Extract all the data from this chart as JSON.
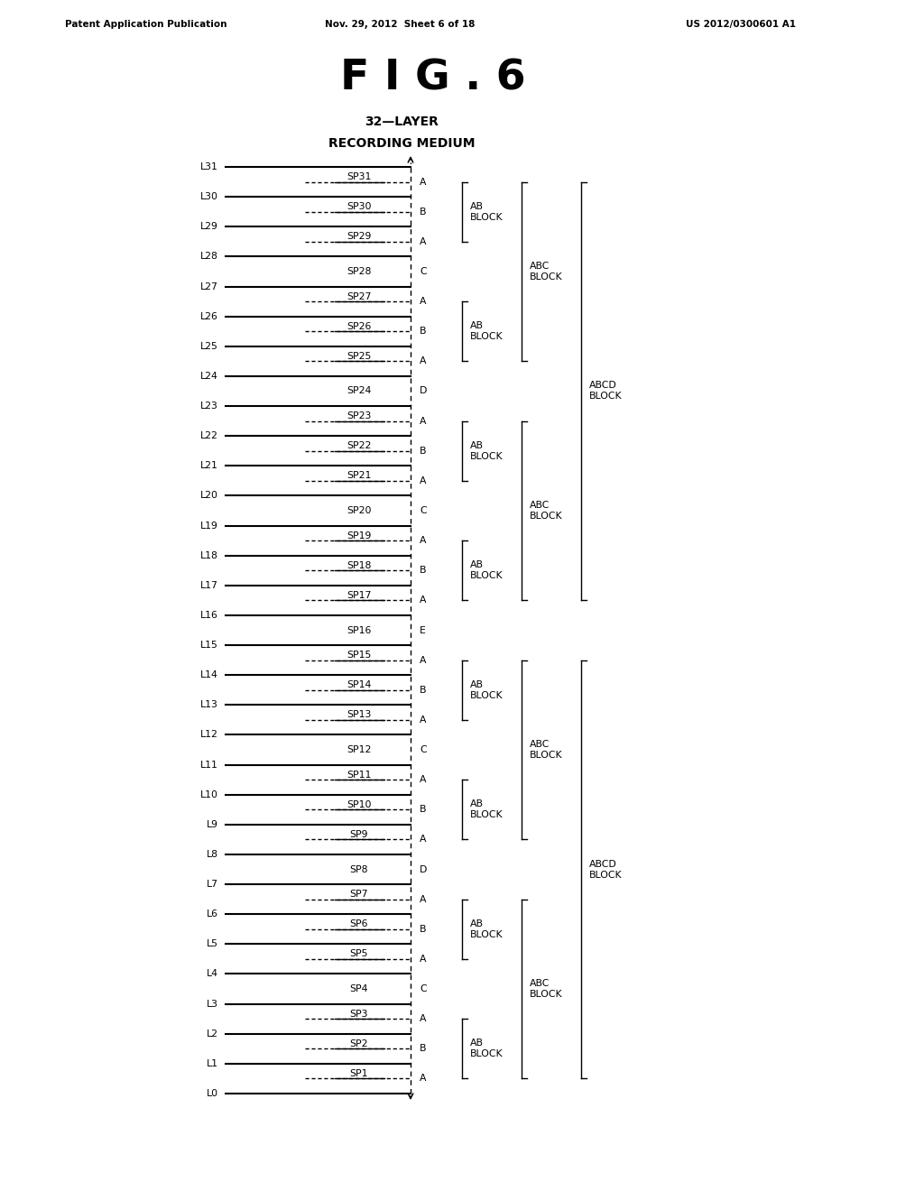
{
  "title": "F I G . 6",
  "subtitle_line1": "32—LAYER",
  "subtitle_line2": "RECORDING MEDIUM",
  "header_left": "Patent Application Publication",
  "header_center": "Nov. 29, 2012  Sheet 6 of 18",
  "header_right": "US 2012/0300601 A1",
  "bg_color": "#ffffff",
  "ordered_items": [
    "L31",
    "SP31",
    "L30",
    "SP30",
    "L29",
    "SP29",
    "L28",
    "SP28",
    "L27",
    "SP27",
    "L26",
    "SP26",
    "L25",
    "SP25",
    "L24",
    "SP24",
    "L23",
    "SP23",
    "L22",
    "SP22",
    "L21",
    "SP21",
    "L20",
    "SP20",
    "L19",
    "SP19",
    "L18",
    "SP18",
    "L17",
    "SP17",
    "L16",
    "SP16",
    "L15",
    "SP15",
    "L14",
    "SP14",
    "L13",
    "SP13",
    "L12",
    "SP12",
    "L11",
    "SP11",
    "L10",
    "SP10",
    "L9",
    "SP9",
    "L8",
    "SP8",
    "L7",
    "SP7",
    "L6",
    "SP6",
    "L5",
    "SP5",
    "L4",
    "SP4",
    "L3",
    "SP3",
    "L2",
    "SP2",
    "L1",
    "SP1",
    "L0"
  ],
  "sp_letters": {
    "SP31": "A",
    "SP30": "B",
    "SP29": "A",
    "SP28": "C",
    "SP27": "A",
    "SP26": "B",
    "SP25": "A",
    "SP24": "D",
    "SP23": "A",
    "SP22": "B",
    "SP21": "A",
    "SP20": "C",
    "SP19": "A",
    "SP18": "B",
    "SP17": "A",
    "SP16": "E",
    "SP15": "A",
    "SP14": "B",
    "SP13": "A",
    "SP12": "C",
    "SP11": "A",
    "SP10": "B",
    "SP9": "A",
    "SP8": "D",
    "SP7": "A",
    "SP6": "B",
    "SP5": "A",
    "SP4": "C",
    "SP3": "A",
    "SP2": "B",
    "SP1": "A"
  },
  "sp_has_line": {
    "SP31": true,
    "SP30": true,
    "SP29": true,
    "SP28": false,
    "SP27": true,
    "SP26": true,
    "SP25": true,
    "SP24": false,
    "SP23": true,
    "SP22": true,
    "SP21": true,
    "SP20": false,
    "SP19": true,
    "SP18": true,
    "SP17": true,
    "SP16": false,
    "SP15": true,
    "SP14": true,
    "SP13": true,
    "SP12": false,
    "SP11": true,
    "SP10": true,
    "SP9": true,
    "SP8": false,
    "SP7": true,
    "SP6": true,
    "SP5": true,
    "SP4": false,
    "SP3": true,
    "SP2": true,
    "SP1": true
  },
  "ab_pairs": [
    [
      "SP31",
      "SP29"
    ],
    [
      "SP27",
      "SP25"
    ],
    [
      "SP23",
      "SP21"
    ],
    [
      "SP19",
      "SP17"
    ],
    [
      "SP15",
      "SP13"
    ],
    [
      "SP11",
      "SP9"
    ],
    [
      "SP7",
      "SP5"
    ],
    [
      "SP3",
      "SP1"
    ]
  ],
  "abc_pairs": [
    [
      "SP31",
      "SP25"
    ],
    [
      "SP23",
      "SP17"
    ],
    [
      "SP15",
      "SP9"
    ],
    [
      "SP7",
      "SP1"
    ]
  ],
  "abcd_pairs": [
    [
      "SP31",
      "SP17"
    ],
    [
      "SP15",
      "SP1"
    ]
  ]
}
